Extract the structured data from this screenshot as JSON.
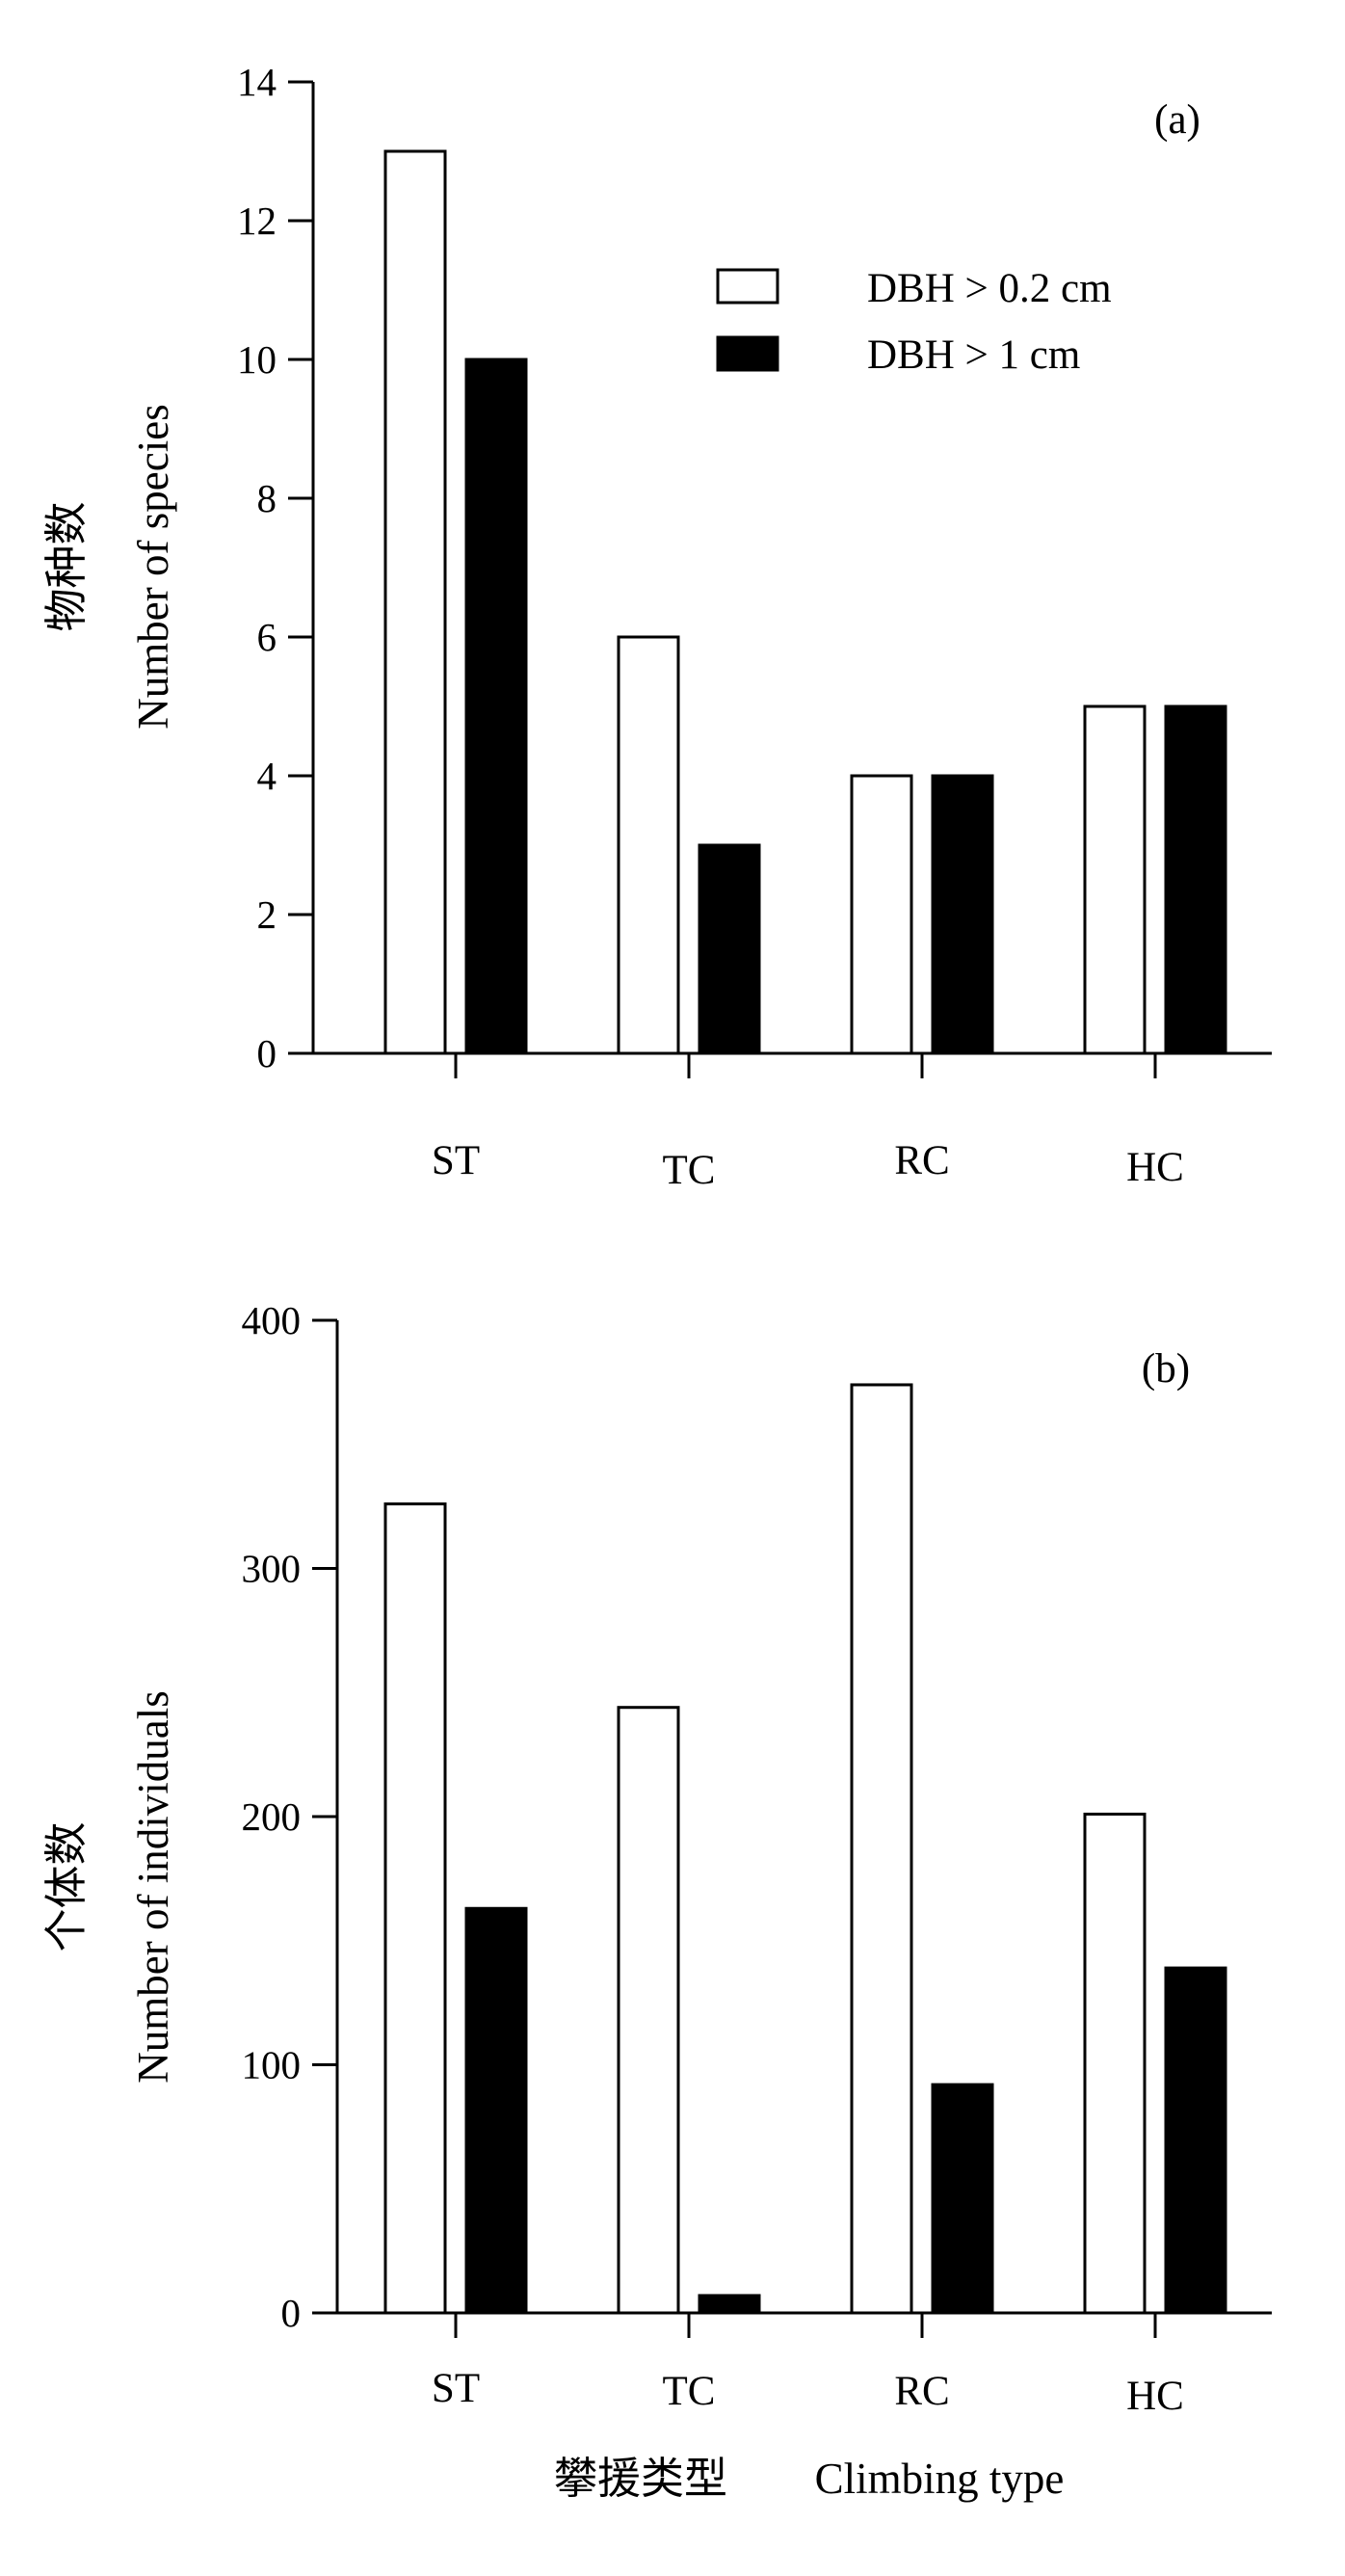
{
  "colors": {
    "series_open": "#ffffff",
    "series_filled": "#000000",
    "stroke": "#000000"
  },
  "chart_data": [
    {
      "type": "bar",
      "panel_label": "(a)",
      "categories": [
        "ST",
        "TC",
        "RC",
        "HC"
      ],
      "series": [
        {
          "name": "DBH > 0.2 cm",
          "values": [
            13,
            6,
            4,
            5
          ]
        },
        {
          "name": "DBH > 1 cm",
          "values": [
            10,
            3,
            4,
            5
          ]
        }
      ],
      "ylabel_cn": "物种数",
      "ylabel": "Number of species",
      "xlabel": "",
      "ylim": [
        0,
        14
      ],
      "yticks": [
        0,
        2,
        4,
        6,
        8,
        10,
        12,
        14
      ],
      "grid": false,
      "legend": "top-right"
    },
    {
      "type": "bar",
      "panel_label": "(b)",
      "categories": [
        "ST",
        "TC",
        "RC",
        "HC"
      ],
      "series": [
        {
          "name": "DBH > 0.2 cm",
          "values": [
            326,
            244,
            374,
            201
          ]
        },
        {
          "name": "DBH > 1 cm",
          "values": [
            163,
            7,
            92,
            139
          ]
        }
      ],
      "ylabel_cn": "个体数",
      "ylabel": "Number of individuals",
      "xlabel_cn": "攀援类型",
      "xlabel": "Climbing type",
      "ylim": [
        0,
        400
      ],
      "yticks": [
        0,
        100,
        200,
        300,
        400
      ],
      "grid": false
    }
  ]
}
